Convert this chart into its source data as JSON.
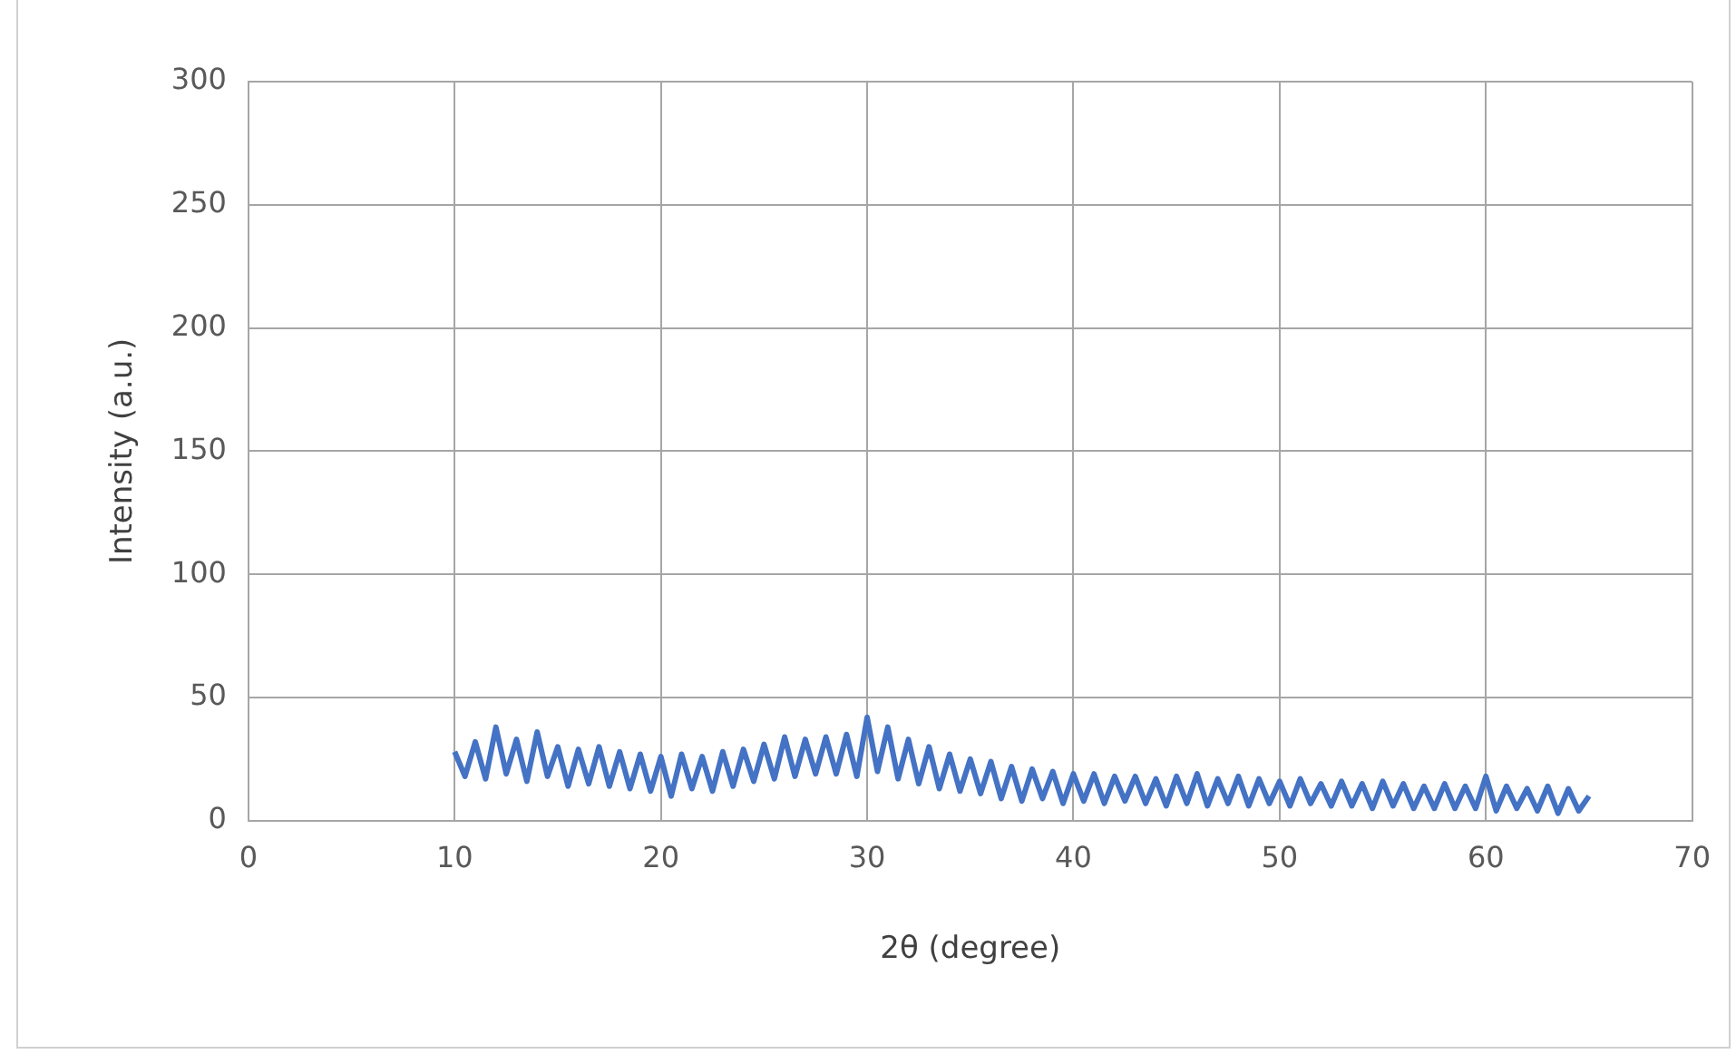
{
  "chart_data": {
    "type": "line",
    "xlabel": "2θ (degree)",
    "ylabel": "Intensity (a.u.)",
    "x": [
      10,
      10.5,
      11,
      11.5,
      12,
      12.5,
      13,
      13.5,
      14,
      14.5,
      15,
      15.5,
      16,
      16.5,
      17,
      17.5,
      18,
      18.5,
      19,
      19.5,
      20,
      20.5,
      21,
      21.5,
      22,
      22.5,
      23,
      23.5,
      24,
      24.5,
      25,
      25.5,
      26,
      26.5,
      27,
      27.5,
      28,
      28.5,
      29,
      29.5,
      30,
      30.5,
      31,
      31.5,
      32,
      32.5,
      33,
      33.5,
      34,
      34.5,
      35,
      35.5,
      36,
      36.5,
      37,
      37.5,
      38,
      38.5,
      39,
      39.5,
      40,
      40.5,
      41,
      41.5,
      42,
      42.5,
      43,
      43.5,
      44,
      44.5,
      45,
      45.5,
      46,
      46.5,
      47,
      47.5,
      48,
      48.5,
      49,
      49.5,
      50,
      50.5,
      51,
      51.5,
      52,
      52.5,
      53,
      53.5,
      54,
      54.5,
      55,
      55.5,
      56,
      56.5,
      57,
      57.5,
      58,
      58.5,
      59,
      59.5,
      60,
      60.5,
      61,
      61.5,
      62,
      62.5,
      63,
      63.5,
      64,
      64.5,
      65
    ],
    "series": [
      {
        "color": "#4472c4",
        "values": [
          28,
          18,
          32,
          17,
          38,
          19,
          33,
          16,
          36,
          18,
          30,
          14,
          29,
          15,
          30,
          14,
          28,
          13,
          27,
          12,
          26,
          10,
          27,
          13,
          26,
          12,
          28,
          14,
          29,
          16,
          31,
          17,
          34,
          18,
          33,
          19,
          34,
          19,
          35,
          18,
          42,
          20,
          38,
          17,
          33,
          15,
          30,
          13,
          27,
          12,
          25,
          11,
          24,
          9,
          22,
          8,
          21,
          9,
          20,
          7,
          19,
          8,
          19,
          7,
          18,
          8,
          18,
          7,
          17,
          6,
          18,
          7,
          19,
          6,
          17,
          7,
          18,
          6,
          17,
          7,
          16,
          6,
          17,
          7,
          15,
          6,
          16,
          6,
          15,
          5,
          16,
          6,
          15,
          5,
          14,
          5,
          15,
          5,
          14,
          5,
          18,
          4,
          14,
          5,
          13,
          4,
          14,
          3,
          13,
          4,
          10
        ]
      }
    ],
    "xlim": [
      0,
      70
    ],
    "xticks": [
      0,
      10,
      20,
      30,
      40,
      50,
      60,
      70
    ],
    "ylim": [
      0,
      300
    ],
    "yticks": [
      0,
      50,
      100,
      150,
      200,
      250,
      300
    ],
    "grid": true,
    "legend": false,
    "marker": "none",
    "line_style": "solid"
  }
}
